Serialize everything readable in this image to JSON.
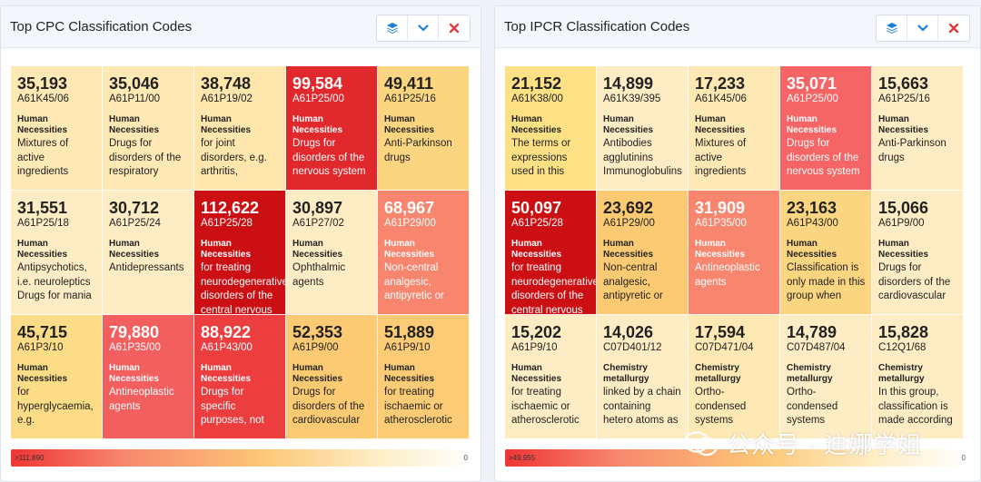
{
  "cpc": {
    "title": "Top CPC Classification Codes",
    "legend_max": ">111,890",
    "legend_min": "0",
    "cells": [
      {
        "count": "35,193",
        "code": "A61K45/06",
        "section": "Human Necessities",
        "desc": "Mixtures of active ingredients",
        "bg": "#fee8b4"
      },
      {
        "count": "35,046",
        "code": "A61P11/00",
        "section": "Human Necessities",
        "desc": "Drugs for disorders of the respiratory",
        "bg": "#fee8b4"
      },
      {
        "count": "38,748",
        "code": "A61P19/02",
        "section": "Human Necessities",
        "desc": "for joint disorders, e.g. arthritis,",
        "bg": "#fee6ad"
      },
      {
        "count": "99,584",
        "code": "A61P25/00",
        "section": "Human Necessities",
        "desc": "Drugs for disorders of the nervous system",
        "bg": "#e1282c",
        "dark": true
      },
      {
        "count": "49,411",
        "code": "A61P25/16",
        "section": "Human Necessities",
        "desc": "Anti-Parkinson drugs",
        "bg": "#fcd581"
      },
      {
        "count": "31,551",
        "code": "A61P25/18",
        "section": "Human Necessities",
        "desc": "Antipsychotics, i.e. neuroleptics Drugs for mania",
        "bg": "#feedc4"
      },
      {
        "count": "30,712",
        "code": "A61P25/24",
        "section": "Human Necessities",
        "desc": "Antidepressants",
        "bg": "#feedc4"
      },
      {
        "count": "112,622",
        "code": "A61P25/28",
        "section": "Human Necessities",
        "desc": "for treating neurodegenerative disorders of the central nervous",
        "bg": "#cc0f12",
        "dark": true
      },
      {
        "count": "30,897",
        "code": "A61P27/02",
        "section": "Human Necessities",
        "desc": "Ophthalmic agents",
        "bg": "#feedc4"
      },
      {
        "count": "68,967",
        "code": "A61P29/00",
        "section": "Human Necessities",
        "desc": "Non-central analgesic, antipyretic or",
        "bg": "#f8856e",
        "dark": true
      },
      {
        "count": "45,715",
        "code": "A61P3/10",
        "section": "Human Necessities",
        "desc": "for hyperglycaemia, e.g.",
        "bg": "#fcdc86"
      },
      {
        "count": "79,880",
        "code": "A61P35/00",
        "section": "Human Necessities",
        "desc": "Antineoplastic agents",
        "bg": "#f35f5f",
        "dark": true
      },
      {
        "count": "88,922",
        "code": "A61P43/00",
        "section": "Human Necessities",
        "desc": "Drugs for specific purposes, not",
        "bg": "#ec3d3f",
        "dark": true
      },
      {
        "count": "52,353",
        "code": "A61P9/00",
        "section": "Human Necessities",
        "desc": "Drugs for disorders of the cardiovascular",
        "bg": "#fcca73"
      },
      {
        "count": "51,889",
        "code": "A61P9/10",
        "section": "Human Necessities",
        "desc": "for treating ischaemic or atherosclerotic",
        "bg": "#fccb75"
      }
    ]
  },
  "ipcr": {
    "title": "Top IPCR Classification Codes",
    "legend_max": ">49,955",
    "legend_min": "0",
    "cells": [
      {
        "count": "21,152",
        "code": "A61K38/00",
        "section": "Human Necessities",
        "desc": "The terms or expressions used in this",
        "bg": "#fde184"
      },
      {
        "count": "14,899",
        "code": "A61K39/395",
        "section": "Human Necessities",
        "desc": "Antibodies agglutinins Immunoglobulins",
        "bg": "#feedc4"
      },
      {
        "count": "17,233",
        "code": "A61K45/06",
        "section": "Human Necessities",
        "desc": "Mixtures of active ingredients",
        "bg": "#fee8b4"
      },
      {
        "count": "35,071",
        "code": "A61P25/00",
        "section": "Human Necessities",
        "desc": "Drugs for disorders of the nervous system",
        "bg": "#f56565",
        "dark": true
      },
      {
        "count": "15,663",
        "code": "A61P25/16",
        "section": "Human Necessities",
        "desc": "Anti-Parkinson drugs",
        "bg": "#feedc4"
      },
      {
        "count": "50,097",
        "code": "A61P25/28",
        "section": "Human Necessities",
        "desc": "for treating neurodegenerative disorders of the central nervous",
        "bg": "#cc0f12",
        "dark": true
      },
      {
        "count": "23,692",
        "code": "A61P29/00",
        "section": "Human Necessities",
        "desc": "Non-central analgesic, antipyretic or",
        "bg": "#fcca73"
      },
      {
        "count": "31,909",
        "code": "A61P35/00",
        "section": "Human Necessities",
        "desc": "Antineoplastic agents",
        "bg": "#f8856e",
        "dark": true
      },
      {
        "count": "23,163",
        "code": "A61P43/00",
        "section": "Human Necessities",
        "desc": "Classification is only made in this group when",
        "bg": "#fcd581"
      },
      {
        "count": "15,066",
        "code": "A61P9/00",
        "section": "Human Necessities",
        "desc": "Drugs for disorders of the cardiovascular",
        "bg": "#feedc4"
      },
      {
        "count": "15,202",
        "code": "A61P9/10",
        "section": "Human Necessities",
        "desc": "for treating ischaemic or atherosclerotic",
        "bg": "#feedc4"
      },
      {
        "count": "14,026",
        "code": "C07D401/12",
        "section": "Chemistry metallurgy",
        "desc": "linked by a chain containing hetero atoms as",
        "bg": "#feedc4"
      },
      {
        "count": "17,594",
        "code": "C07D471/04",
        "section": "Chemistry metallurgy",
        "desc": "Ortho-condensed systems",
        "bg": "#fee8b4"
      },
      {
        "count": "14,789",
        "code": "C07D487/04",
        "section": "Chemistry metallurgy",
        "desc": "Ortho-condensed systems",
        "bg": "#feedc4"
      },
      {
        "count": "15,828",
        "code": "C12Q1/68",
        "section": "Chemistry metallurgy",
        "desc": "In this group, classification is made according",
        "bg": "#feedc4"
      }
    ]
  },
  "watermark": {
    "text": "公众号 · 迪娜学姐"
  },
  "colors": {
    "toolbar_icon": "#1a7fd6",
    "close_icon": "#e23a3a"
  }
}
